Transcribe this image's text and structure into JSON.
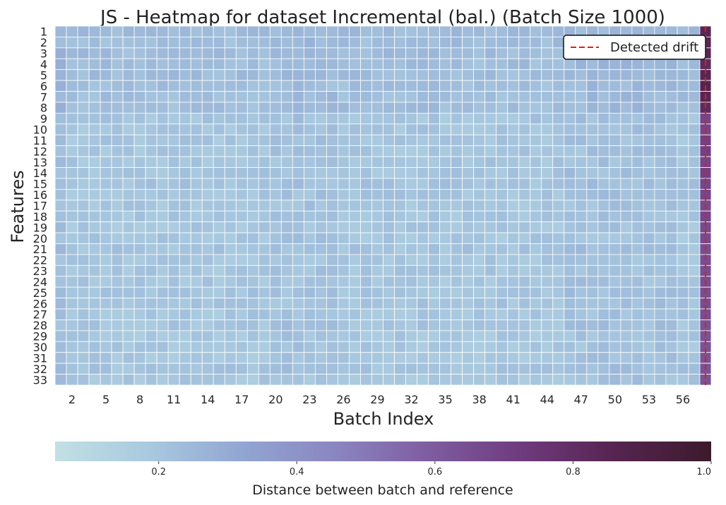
{
  "chart_data": {
    "type": "heatmap",
    "title": "JS - Heatmap for dataset Incremental (bal.) (Batch Size 1000)",
    "xlabel": "Batch Index",
    "ylabel": "Features",
    "x_tick_labels": [
      "2",
      "5",
      "8",
      "11",
      "14",
      "17",
      "20",
      "23",
      "26",
      "29",
      "32",
      "35",
      "38",
      "41",
      "44",
      "47",
      "50",
      "53",
      "56"
    ],
    "x_tick_batches": [
      2,
      5,
      8,
      11,
      14,
      17,
      20,
      23,
      26,
      29,
      32,
      35,
      38,
      41,
      44,
      47,
      50,
      53,
      56
    ],
    "batch_range": [
      1,
      58
    ],
    "y_tick_labels": [
      "1",
      "2",
      "3",
      "4",
      "5",
      "6",
      "7",
      "8",
      "9",
      "10",
      "11",
      "12",
      "13",
      "14",
      "15",
      "16",
      "17",
      "18",
      "19",
      "20",
      "21",
      "22",
      "23",
      "24",
      "25",
      "26",
      "27",
      "28",
      "29",
      "30",
      "31",
      "32",
      "33"
    ],
    "colorbar": {
      "label": "Distance between batch and reference",
      "ticks": [
        "0.2",
        "0.4",
        "0.6",
        "0.8",
        "1.0"
      ],
      "tick_values": [
        0.2,
        0.4,
        0.6,
        0.8,
        1.0
      ],
      "range": [
        0.05,
        1.0
      ],
      "colormap_stops": [
        "#c2e0e4",
        "#a9c9df",
        "#91a6d2",
        "#8a85c0",
        "#7e5ca0",
        "#6e3a7d",
        "#55244f",
        "#3c1a2c"
      ]
    },
    "legend": {
      "label": "Detected drift",
      "placement": "top-right",
      "line_color": "#e41a1c"
    },
    "drift_batch": 58,
    "value_profile": {
      "base_range": [
        0.12,
        0.26
      ],
      "last_batch_values": [
        0.85,
        0.85,
        0.85,
        0.82,
        0.85,
        0.87,
        0.85,
        0.82,
        0.68,
        0.68,
        0.7,
        0.7,
        0.68,
        0.7,
        0.68,
        0.68,
        0.66,
        0.68,
        0.66,
        0.66,
        0.65,
        0.65,
        0.65,
        0.65,
        0.65,
        0.65,
        0.65,
        0.63,
        0.63,
        0.63,
        0.63,
        0.63,
        0.63
      ]
    }
  }
}
